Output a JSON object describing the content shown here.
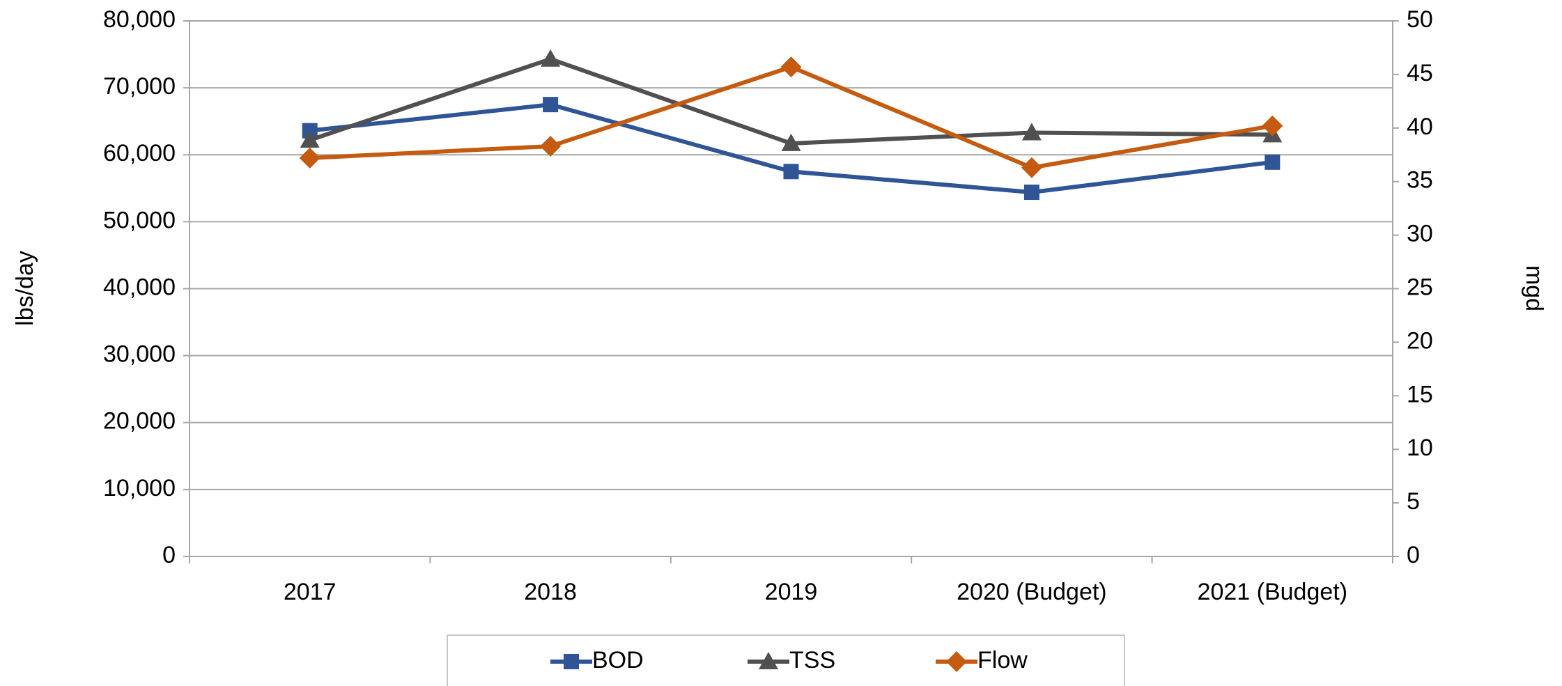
{
  "chart_data": {
    "type": "line",
    "categories": [
      "2017",
      "2018",
      "2019",
      "2020 (Budget)",
      "2021 (Budget)"
    ],
    "ylabel": "lbs/day",
    "y2label": "mgd",
    "ylim": [
      0,
      80000
    ],
    "yticks": [
      0,
      {
        "value": 10000,
        "label": "10,000"
      },
      {
        "value": 20000,
        "label": "20,000"
      },
      {
        "value": 30000,
        "label": "30,000"
      },
      {
        "value": 40000,
        "label": "40,000"
      },
      {
        "value": 50000,
        "label": "50,000"
      },
      {
        "value": 60000,
        "label": "60,000"
      },
      {
        "value": 70000,
        "label": "70,000"
      },
      {
        "value": 80000,
        "label": "80,000"
      }
    ],
    "y2lim": [
      0,
      50
    ],
    "y2ticks": [
      0,
      5,
      10,
      15,
      20,
      25,
      30,
      35,
      40,
      45,
      50
    ],
    "grid": true,
    "legend": "bottom",
    "series": [
      {
        "name": "BOD",
        "color": "#2f5597",
        "marker": "square",
        "values": [
          63600,
          67500,
          57500,
          54400,
          58900
        ]
      },
      {
        "name": "TSS",
        "color": "#505050",
        "marker": "triangle",
        "values": [
          62200,
          74300,
          61700,
          63300,
          63000
        ]
      },
      {
        "name": "Flow",
        "color": "#c55a11",
        "marker": "diamond",
        "axis": "y2",
        "values": [
          37.2,
          38.3,
          45.7,
          36.3,
          40.2
        ]
      }
    ]
  }
}
